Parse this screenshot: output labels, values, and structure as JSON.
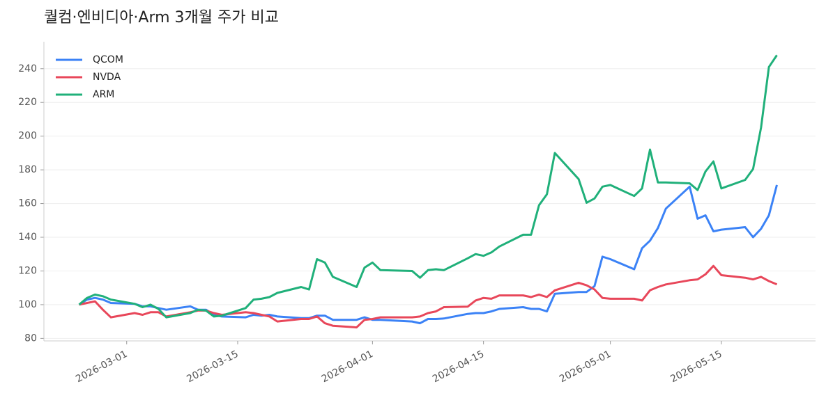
{
  "chart_data": {
    "type": "line",
    "title": "퀄컴·엔비디아·Arm 3개월 주가 비교",
    "x": [
      "2026-02-23",
      "2026-02-24",
      "2026-02-25",
      "2026-02-26",
      "2026-02-27",
      "2026-03-02",
      "2026-03-03",
      "2026-03-04",
      "2026-03-05",
      "2026-03-06",
      "2026-03-09",
      "2026-03-10",
      "2026-03-11",
      "2026-03-12",
      "2026-03-13",
      "2026-03-16",
      "2026-03-17",
      "2026-03-18",
      "2026-03-19",
      "2026-03-20",
      "2026-03-23",
      "2026-03-24",
      "2026-03-25",
      "2026-03-26",
      "2026-03-27",
      "2026-03-30",
      "2026-03-31",
      "2026-04-01",
      "2026-04-02",
      "2026-04-06",
      "2026-04-07",
      "2026-04-08",
      "2026-04-09",
      "2026-04-10",
      "2026-04-13",
      "2026-04-14",
      "2026-04-15",
      "2026-04-16",
      "2026-04-17",
      "2026-04-20",
      "2026-04-21",
      "2026-04-22",
      "2026-04-23",
      "2026-04-24",
      "2026-04-27",
      "2026-04-28",
      "2026-04-29",
      "2026-04-30",
      "2026-05-01",
      "2026-05-04",
      "2026-05-05",
      "2026-05-06",
      "2026-05-07",
      "2026-05-08",
      "2026-05-11",
      "2026-05-12",
      "2026-05-13",
      "2026-05-14",
      "2026-05-15",
      "2026-05-18",
      "2026-05-19",
      "2026-05-20",
      "2026-05-21",
      "2026-05-22"
    ],
    "series": [
      {
        "name": "QCOM",
        "color": "#3b82f6",
        "values": [
          100,
          103,
          104,
          103,
          101,
          100.5,
          99,
          99,
          98,
          97,
          99,
          97,
          97,
          94,
          93,
          92.5,
          94,
          93.5,
          94,
          93,
          92,
          92,
          93.5,
          93.5,
          91,
          91,
          92.5,
          91,
          91,
          90,
          89,
          91.5,
          91.5,
          91.8,
          94.5,
          95,
          95,
          96,
          97.5,
          98.5,
          97.5,
          97.5,
          96,
          106.5,
          107.5,
          107.5,
          111,
          128.5,
          127,
          121,
          133.5,
          138,
          145.5,
          157,
          170,
          151,
          153,
          143.5,
          144.5,
          146,
          140,
          145,
          153,
          171
        ]
      },
      {
        "name": "NVDA",
        "color": "#e8475a",
        "values": [
          100,
          101,
          102,
          97,
          92.5,
          95,
          94,
          95.5,
          95.5,
          93,
          95.5,
          96.5,
          96.5,
          95,
          94,
          95.5,
          95,
          94,
          93,
          90,
          91.5,
          91.5,
          93,
          89,
          87.5,
          86.5,
          91,
          91.5,
          92.5,
          92.5,
          93,
          95,
          96,
          98.5,
          98.8,
          102.5,
          104,
          103.5,
          105.5,
          105.5,
          104.5,
          106,
          104.5,
          108.5,
          113,
          111.5,
          109,
          104,
          103.5,
          103.5,
          102.5,
          108.5,
          110.5,
          112,
          114.5,
          115,
          118,
          123,
          117.5,
          116,
          115,
          116.5,
          114,
          112
        ]
      },
      {
        "name": "ARM",
        "color": "#20b07a",
        "values": [
          100,
          104,
          106,
          105,
          103,
          100.5,
          98.5,
          100,
          97.5,
          92.5,
          95,
          97,
          96.5,
          93,
          93.5,
          98,
          103,
          103.5,
          104.5,
          107,
          110.5,
          109,
          127,
          125,
          116.5,
          110.5,
          122,
          125,
          120.5,
          120,
          116,
          120.5,
          121,
          120.5,
          127.5,
          130,
          129,
          131,
          134.5,
          141.5,
          141.5,
          159,
          165.5,
          190,
          174.5,
          160.5,
          163,
          170,
          171,
          164.5,
          169,
          192,
          172.5,
          172.5,
          172,
          168,
          179,
          185,
          169,
          174,
          180.5,
          205,
          241,
          248
        ]
      }
    ],
    "xlim": [
      "2026-02-19",
      "2026-05-26"
    ],
    "xticks": [
      "2026-03-01",
      "2026-03-15",
      "2026-04-01",
      "2026-04-15",
      "2026-05-01",
      "2026-05-15"
    ],
    "ylim": [
      78.5,
      256
    ],
    "yticks": [
      80,
      100,
      120,
      140,
      160,
      180,
      200,
      220,
      240
    ],
    "grid": true,
    "legend": "upper left"
  }
}
